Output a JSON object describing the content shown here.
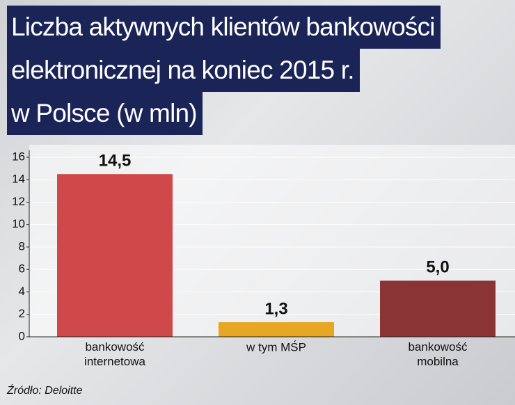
{
  "chart_data": {
    "type": "bar",
    "title": "Liczba aktywnych klientów bankowości\nelektronicznej na koniec 2015 r.\nw Polsce (w mln)",
    "categories": [
      "bankowość\ninternetowa",
      "w tym MŚP",
      "bankowość\nmobilna"
    ],
    "values": [
      14.5,
      1.3,
      5.0
    ],
    "value_labels": [
      "14,5",
      "1,3",
      "5,0"
    ],
    "colors": [
      "#d0494a",
      "#e8a722",
      "#8b3436"
    ],
    "ylim": [
      0,
      16
    ],
    "yticks": [
      0,
      2,
      4,
      6,
      8,
      10,
      12,
      14,
      16
    ],
    "grid": true,
    "source": "Źródło: Deloitte"
  }
}
